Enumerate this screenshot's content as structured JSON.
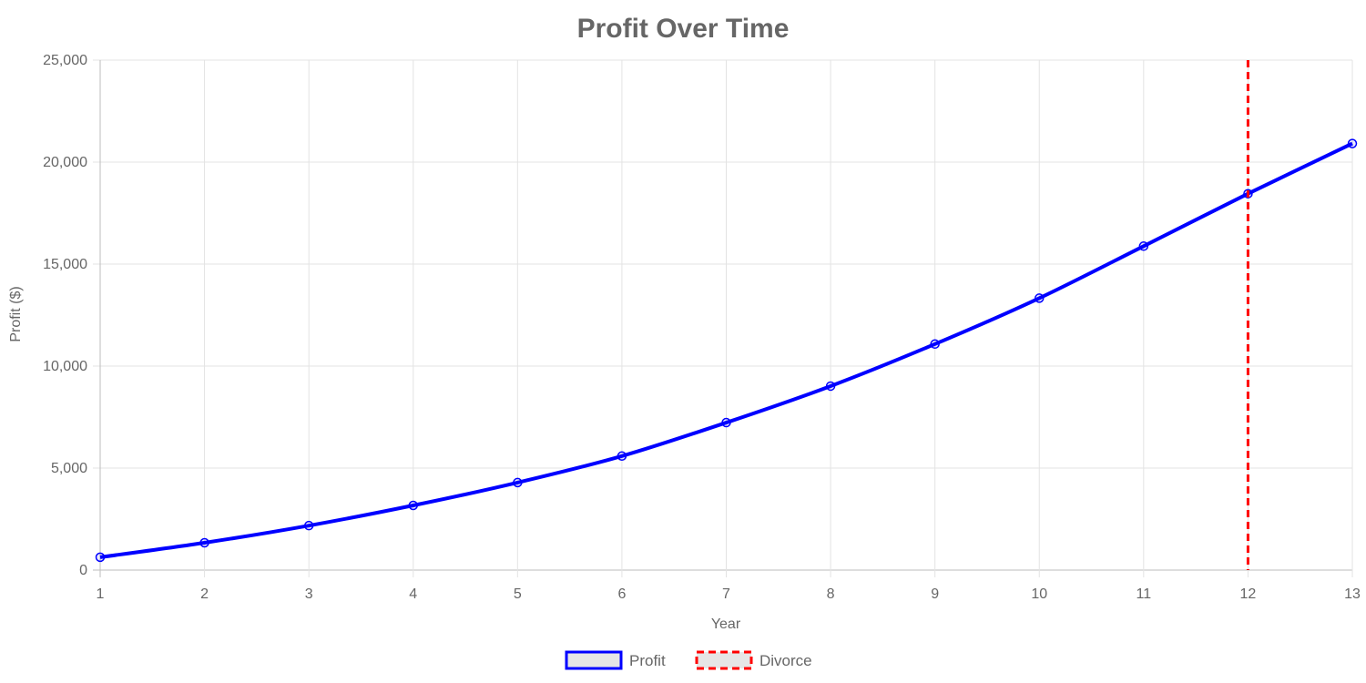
{
  "chart_data": {
    "type": "line",
    "title": "Profit Over Time",
    "xlabel": "Year",
    "ylabel": "Profit ($)",
    "x": [
      1,
      2,
      3,
      4,
      5,
      6,
      7,
      8,
      9,
      10,
      11,
      12,
      13
    ],
    "x_tick_labels": [
      "1",
      "2",
      "3",
      "4",
      "5",
      "6",
      "7",
      "8",
      "9",
      "10",
      "11",
      "12",
      "13"
    ],
    "ylim": [
      0,
      25000
    ],
    "y_ticks": [
      0,
      5000,
      10000,
      15000,
      20000,
      25000
    ],
    "y_tick_labels": [
      "0",
      "5,000",
      "10,000",
      "15,000",
      "20,000",
      "25,000"
    ],
    "grid": true,
    "legend_position": "bottom",
    "series": [
      {
        "name": "Profit",
        "color": "#0000ff",
        "style": "solid",
        "values": [
          630,
          1340,
          2180,
          3170,
          4290,
          5590,
          7230,
          9020,
          11080,
          13330,
          15880,
          18450,
          20910
        ]
      },
      {
        "name": "Divorce",
        "color": "#ff0000",
        "style": "dashed",
        "type": "vertical-line",
        "x_value": 12
      }
    ]
  }
}
